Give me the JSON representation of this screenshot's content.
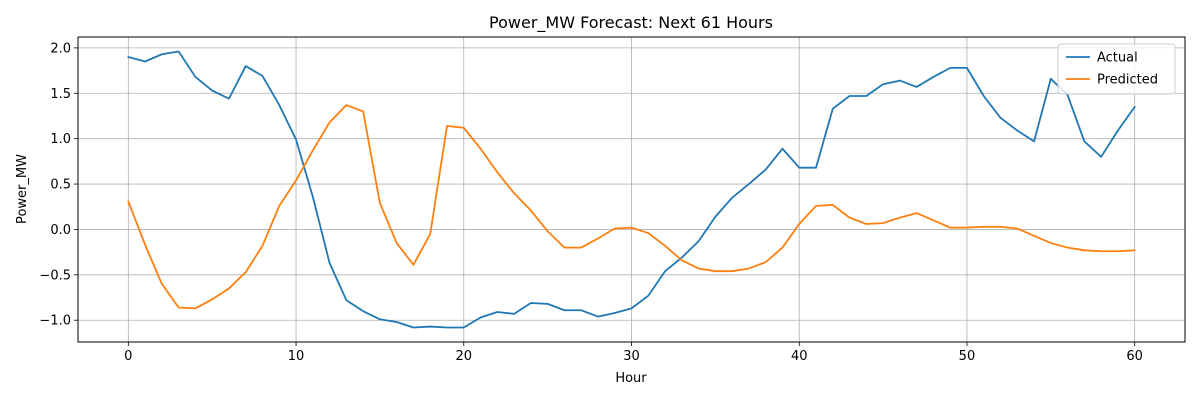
{
  "chart_data": {
    "type": "line",
    "title": "Power_MW Forecast: Next 61 Hours",
    "xlabel": "Hour",
    "ylabel": "Power_MW",
    "xlim": [
      -3,
      63
    ],
    "ylim": [
      -1.24,
      2.12
    ],
    "xticks": [
      0,
      10,
      20,
      30,
      40,
      50,
      60
    ],
    "yticks": [
      -1.0,
      -0.5,
      0.0,
      0.5,
      1.0,
      1.5,
      2.0
    ],
    "xtick_labels": [
      "0",
      "10",
      "20",
      "30",
      "40",
      "50",
      "60"
    ],
    "ytick_labels": [
      "−1.0",
      "−0.5",
      "0.0",
      "0.5",
      "1.0",
      "1.5",
      "2.0"
    ],
    "grid": true,
    "legend_position": "top-right",
    "x": [
      0,
      1,
      2,
      3,
      4,
      5,
      6,
      7,
      8,
      9,
      10,
      11,
      12,
      13,
      14,
      15,
      16,
      17,
      18,
      19,
      20,
      21,
      22,
      23,
      24,
      25,
      26,
      27,
      28,
      29,
      30,
      31,
      32,
      33,
      34,
      35,
      36,
      37,
      38,
      39,
      40,
      41,
      42,
      43,
      44,
      45,
      46,
      47,
      48,
      49,
      50,
      51,
      52,
      53,
      54,
      55,
      56,
      57,
      58,
      59,
      60
    ],
    "series": [
      {
        "name": "Actual",
        "color": "#1f77b4",
        "values": [
          1.9,
          1.85,
          1.93,
          1.96,
          1.68,
          1.53,
          1.44,
          1.8,
          1.69,
          1.37,
          0.99,
          0.36,
          -0.37,
          -0.78,
          -0.9,
          -0.99,
          -1.02,
          -1.08,
          -1.07,
          -1.08,
          -1.08,
          -0.97,
          -0.91,
          -0.93,
          -0.81,
          -0.82,
          -0.89,
          -0.89,
          -0.96,
          -0.92,
          -0.87,
          -0.73,
          -0.46,
          -0.31,
          -0.13,
          0.14,
          0.35,
          0.5,
          0.66,
          0.89,
          0.68,
          0.68,
          1.33,
          1.47,
          1.47,
          1.6,
          1.64,
          1.57,
          1.68,
          1.78,
          1.78,
          1.47,
          1.23,
          1.09,
          0.97,
          1.66,
          1.48,
          0.97,
          0.8,
          1.09,
          1.35
        ]
      },
      {
        "name": "Predicted",
        "color": "#ff7f0e",
        "values": [
          0.31,
          -0.17,
          -0.6,
          -0.86,
          -0.87,
          -0.77,
          -0.65,
          -0.47,
          -0.18,
          0.26,
          0.54,
          0.87,
          1.18,
          1.37,
          1.3,
          0.29,
          -0.15,
          -0.39,
          -0.05,
          1.14,
          1.12,
          0.89,
          0.63,
          0.4,
          0.21,
          -0.02,
          -0.2,
          -0.2,
          -0.1,
          0.01,
          0.02,
          -0.04,
          -0.18,
          -0.34,
          -0.43,
          -0.46,
          -0.46,
          -0.43,
          -0.36,
          -0.2,
          0.06,
          0.26,
          0.27,
          0.13,
          0.06,
          0.07,
          0.13,
          0.18,
          0.1,
          0.02,
          0.02,
          0.03,
          0.03,
          0.01,
          -0.07,
          -0.15,
          -0.2,
          -0.23,
          -0.24,
          -0.24,
          -0.23
        ]
      }
    ]
  }
}
